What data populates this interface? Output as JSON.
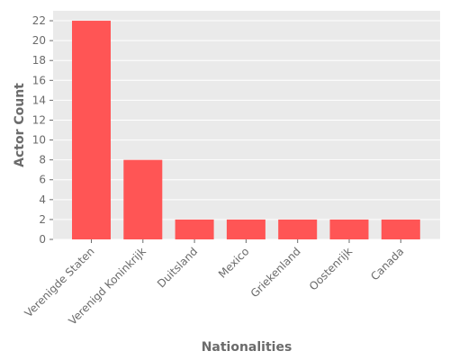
{
  "chart_data": {
    "type": "bar",
    "title": "",
    "xlabel": "Nationalities",
    "ylabel": "Actor Count",
    "categories": [
      "Verenigde Staten",
      "Verenigd Koninkrijk",
      "Duitsland",
      "Mexico",
      "Griekenland",
      "Oostenrijk",
      "Canada"
    ],
    "values": [
      22,
      8,
      2,
      2,
      2,
      2,
      2
    ],
    "ylim": [
      0,
      23
    ],
    "yticks": [
      0,
      2,
      4,
      6,
      8,
      10,
      12,
      14,
      16,
      18,
      20,
      22
    ],
    "grid": true,
    "legend": "none",
    "colors": {
      "bar": "#ff5555",
      "plot_background": "#eaeaea",
      "grid": "#ffffff",
      "text": "#6b6b6b"
    }
  }
}
